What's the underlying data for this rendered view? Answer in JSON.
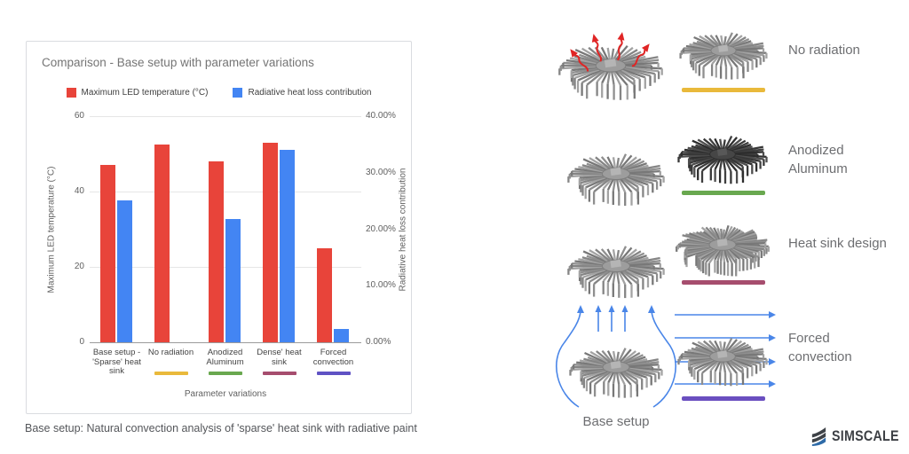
{
  "chart_data": {
    "type": "bar",
    "title": "Comparison - Base setup with parameter variations",
    "categories": [
      "Base setup - 'Sparse' heat sink",
      "No radiation",
      "Anodized Aluminum",
      "Dense' heat sink",
      "Forced convection"
    ],
    "category_label_lines": [
      [
        "Base setup -",
        "'Sparse' heat",
        "sink"
      ],
      [
        "No radiation"
      ],
      [
        "Anodized",
        "Aluminum"
      ],
      [
        "Dense' heat",
        "sink"
      ],
      [
        "Forced",
        "convection"
      ]
    ],
    "category_underline_colors": [
      null,
      "#E9B93B",
      "#69A84F",
      "#A64D6E",
      "#5F52C4"
    ],
    "series": [
      {
        "name": "Maximum LED temperature (°C)",
        "axis": "left",
        "color": "#E8443A",
        "values": [
          47,
          52.5,
          48,
          53,
          25
        ]
      },
      {
        "name": "Radiative heat loss contribution",
        "axis": "right",
        "color": "#4385F3",
        "unit": "%",
        "values": [
          25.1,
          0,
          21.8,
          34,
          2.3
        ]
      }
    ],
    "left_axis": {
      "title": "Maximum LED temperature (°C)",
      "ticks": [
        0,
        20,
        40,
        60
      ],
      "range": [
        0,
        60
      ]
    },
    "right_axis": {
      "title": "Radiative heat loss contribution",
      "ticks": [
        "0.00%",
        "10.00%",
        "20.00%",
        "30.00%",
        "40.00%"
      ],
      "range": [
        0,
        40
      ]
    },
    "x_axis_title": "Parameter variations",
    "legend_position": "top",
    "grid": true
  },
  "caption": "Base setup: Natural convection analysis of 'sparse' heat sink with radiative paint",
  "right_panel": {
    "rows": [
      {
        "label_lines": [
          "No radiation"
        ],
        "underline_color": "#E9B93B",
        "decoration": "radiation-arrows"
      },
      {
        "label_lines": [
          "Anodized",
          "Aluminum"
        ],
        "underline_color": "#69A84F",
        "decoration": "dark-heat-sink"
      },
      {
        "label_lines": [
          "Heat sink design"
        ],
        "underline_color": "#A64D6E",
        "decoration": "dense-heat-sink"
      },
      {
        "label_lines": [
          "Forced",
          "convection"
        ],
        "underline_color": "#6A4FC0",
        "decoration": "flow-arrows"
      }
    ],
    "base_setup_label": "Base setup",
    "radiation_arrow_color": "#E02525",
    "flow_arrow_color": "#4A86E8"
  },
  "logo": {
    "text": "SIMSCALE",
    "accent_color": "#2F6BA8",
    "text_color": "#3d4045"
  }
}
